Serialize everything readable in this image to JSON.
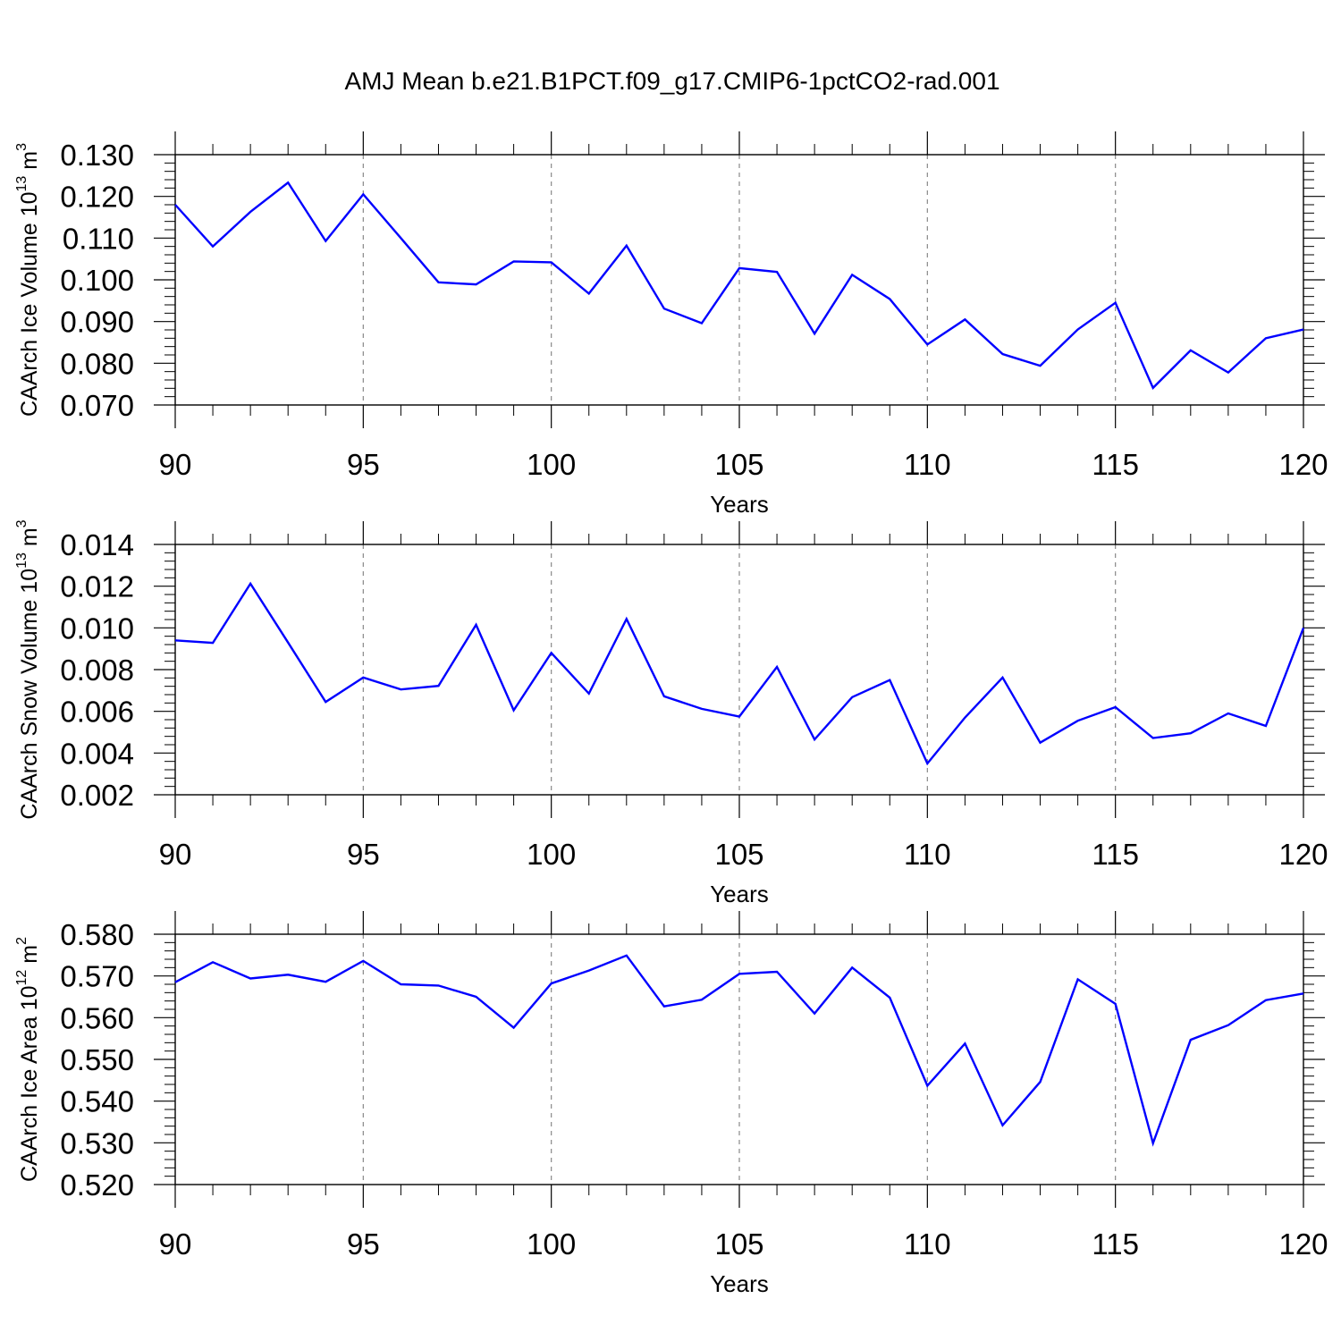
{
  "title": "AMJ Mean b.e21.B1PCT.f09_g17.CMIP6-1pctCO2-rad.001",
  "colors": {
    "line": "#0000ff",
    "axis": "#000000",
    "grid": "#888888"
  },
  "chart_data": [
    {
      "type": "line",
      "ylabel": {
        "text": "CAArch Ice Volume 10",
        "exp": "13",
        "unit": " m",
        "unit_exp": "3"
      },
      "xlabel": "Years",
      "xlim": [
        90,
        120
      ],
      "ylim": [
        0.07,
        0.13
      ],
      "xticks": [
        90,
        95,
        100,
        105,
        110,
        115,
        120
      ],
      "xtick_labels": [
        "90",
        "95",
        "100",
        "105",
        "110",
        "115",
        "120"
      ],
      "yticks": [
        0.07,
        0.08,
        0.09,
        0.1,
        0.11,
        0.12,
        0.13
      ],
      "ytick_labels": [
        "0.070",
        "0.080",
        "0.090",
        "0.100",
        "0.110",
        "0.120",
        "0.130"
      ],
      "grid": "vertical dashed at major x ticks",
      "series": [
        {
          "name": "CAArch Ice Volume",
          "x": [
            90,
            91,
            92,
            93,
            94,
            95,
            96,
            97,
            98,
            99,
            100,
            101,
            102,
            103,
            104,
            105,
            106,
            107,
            108,
            109,
            110,
            111,
            112,
            113,
            114,
            115,
            116,
            117,
            118,
            119,
            120
          ],
          "values": [
            0.118,
            0.108,
            0.1163,
            0.1233,
            0.1093,
            0.1205,
            0.11,
            0.0994,
            0.0989,
            0.1044,
            0.1042,
            0.0967,
            0.1082,
            0.0931,
            0.0896,
            0.1028,
            0.1019,
            0.0871,
            0.1012,
            0.0954,
            0.0845,
            0.0905,
            0.0822,
            0.0794,
            0.0881,
            0.0945,
            0.0741,
            0.0831,
            0.0778,
            0.086,
            0.0881
          ]
        }
      ]
    },
    {
      "type": "line",
      "ylabel": {
        "text": "CAArch Snow Volume 10",
        "exp": "13",
        "unit": " m",
        "unit_exp": "3"
      },
      "xlabel": "Years",
      "xlim": [
        90,
        120
      ],
      "ylim": [
        0.002,
        0.014
      ],
      "xticks": [
        90,
        95,
        100,
        105,
        110,
        115,
        120
      ],
      "xtick_labels": [
        "90",
        "95",
        "100",
        "105",
        "110",
        "115",
        "120"
      ],
      "yticks": [
        0.002,
        0.004,
        0.006,
        0.008,
        0.01,
        0.012,
        0.014
      ],
      "ytick_labels": [
        "0.002",
        "0.004",
        "0.006",
        "0.008",
        "0.010",
        "0.012",
        "0.014"
      ],
      "grid": "vertical dashed at major x ticks",
      "series": [
        {
          "name": "CAArch Snow Volume",
          "x": [
            90,
            91,
            92,
            93,
            94,
            95,
            96,
            97,
            98,
            99,
            100,
            101,
            102,
            103,
            104,
            105,
            106,
            107,
            108,
            109,
            110,
            111,
            112,
            113,
            114,
            115,
            116,
            117,
            118,
            119,
            120
          ],
          "values": [
            0.0094,
            0.00928,
            0.01212,
            0.0093,
            0.00645,
            0.00762,
            0.00705,
            0.00722,
            0.01015,
            0.00605,
            0.0088,
            0.00685,
            0.01043,
            0.00672,
            0.00612,
            0.00575,
            0.00813,
            0.00465,
            0.00668,
            0.0075,
            0.0035,
            0.0057,
            0.00762,
            0.0045,
            0.00555,
            0.0062,
            0.00472,
            0.00495,
            0.0059,
            0.0053,
            0.01
          ]
        }
      ]
    },
    {
      "type": "line",
      "ylabel": {
        "text": "CAArch Ice Area 10",
        "exp": "12",
        "unit": " m",
        "unit_exp": "2"
      },
      "xlabel": "Years",
      "xlim": [
        90,
        120
      ],
      "ylim": [
        0.52,
        0.58
      ],
      "xticks": [
        90,
        95,
        100,
        105,
        110,
        115,
        120
      ],
      "xtick_labels": [
        "90",
        "95",
        "100",
        "105",
        "110",
        "115",
        "120"
      ],
      "yticks": [
        0.52,
        0.53,
        0.54,
        0.55,
        0.56,
        0.57,
        0.58
      ],
      "ytick_labels": [
        "0.520",
        "0.530",
        "0.540",
        "0.550",
        "0.560",
        "0.570",
        "0.580"
      ],
      "grid": "vertical dashed at major x ticks",
      "series": [
        {
          "name": "CAArch Ice Area",
          "x": [
            90,
            91,
            92,
            93,
            94,
            95,
            96,
            97,
            98,
            99,
            100,
            101,
            102,
            103,
            104,
            105,
            106,
            107,
            108,
            109,
            110,
            111,
            112,
            113,
            114,
            115,
            116,
            117,
            118,
            119,
            120
          ],
          "values": [
            0.5685,
            0.5733,
            0.5694,
            0.5703,
            0.5686,
            0.5736,
            0.568,
            0.5677,
            0.565,
            0.5576,
            0.5682,
            0.5713,
            0.5749,
            0.5627,
            0.5643,
            0.5705,
            0.571,
            0.561,
            0.572,
            0.5648,
            0.5437,
            0.5538,
            0.5342,
            0.5446,
            0.5692,
            0.5633,
            0.5299,
            0.5547,
            0.5582,
            0.5642,
            0.5658
          ]
        }
      ]
    }
  ]
}
